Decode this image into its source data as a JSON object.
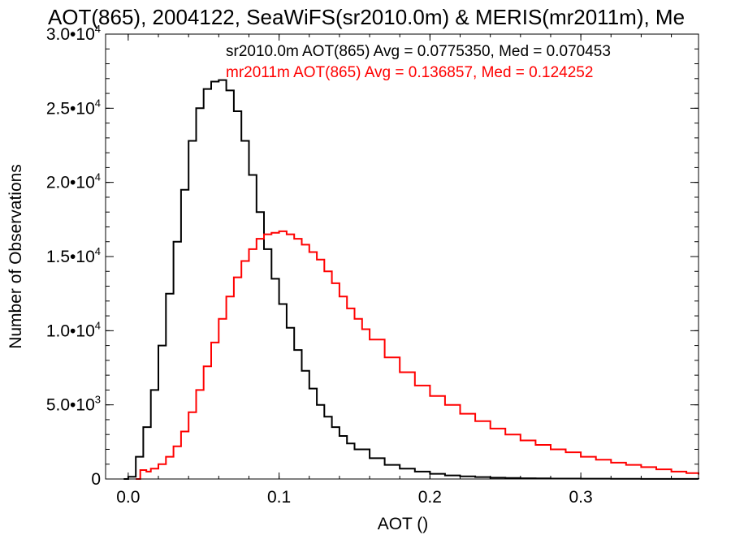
{
  "chart_data": {
    "type": "line",
    "title": "AOT(865), 2004122, SeaWiFS(sr2010.0m) & MERIS(mr2011m), Me",
    "xlabel": "AOT ()",
    "ylabel": "Number of Observations",
    "xlim": [
      -0.015,
      0.378
    ],
    "ylim": [
      0,
      30000
    ],
    "xticks": [
      {
        "value": 0.0,
        "label": "0.0"
      },
      {
        "value": 0.1,
        "label": "0.1"
      },
      {
        "value": 0.2,
        "label": "0.2"
      },
      {
        "value": 0.3,
        "label": "0.3"
      }
    ],
    "yticks": [
      {
        "value": 0,
        "label": "0",
        "exp": ""
      },
      {
        "value": 5000,
        "label": "5.0•10",
        "exp": "3"
      },
      {
        "value": 10000,
        "label": "1.0•10",
        "exp": "4"
      },
      {
        "value": 15000,
        "label": "1.5•10",
        "exp": "4"
      },
      {
        "value": 20000,
        "label": "2.0•10",
        "exp": "4"
      },
      {
        "value": 25000,
        "label": "2.5•10",
        "exp": "4"
      },
      {
        "value": 30000,
        "label": "3.0•10",
        "exp": "4"
      }
    ],
    "grid": false,
    "legend_position": "top-right",
    "series": [
      {
        "name": "sr2010.0m AOT(865) Avg = 0.0775350, Med = 0.070453",
        "color": "#000000",
        "step": true,
        "x": [
          -0.003,
          0.0,
          0.005,
          0.01,
          0.015,
          0.02,
          0.025,
          0.03,
          0.035,
          0.04,
          0.045,
          0.05,
          0.055,
          0.06,
          0.065,
          0.07,
          0.075,
          0.08,
          0.085,
          0.09,
          0.095,
          0.1,
          0.105,
          0.11,
          0.115,
          0.12,
          0.125,
          0.13,
          0.135,
          0.14,
          0.145,
          0.15,
          0.16,
          0.17,
          0.18,
          0.19,
          0.2,
          0.21,
          0.22,
          0.23,
          0.24,
          0.25,
          0.26,
          0.27,
          0.28,
          0.3,
          0.32,
          0.34,
          0.36,
          0.378
        ],
        "y": [
          0,
          150,
          1500,
          3500,
          6000,
          9000,
          12500,
          16000,
          19500,
          22800,
          25000,
          26300,
          26800,
          26900,
          26200,
          24800,
          22800,
          20500,
          18000,
          15500,
          13500,
          11800,
          10200,
          8700,
          7300,
          6100,
          5000,
          4200,
          3500,
          2900,
          2400,
          2000,
          1400,
          950,
          700,
          500,
          350,
          240,
          180,
          130,
          90,
          70,
          50,
          40,
          30,
          20,
          10,
          5,
          3,
          0
        ]
      },
      {
        "name": "mr2011m AOT(865) Avg = 0.136857, Med = 0.124252",
        "color": "#ff0000",
        "step": true,
        "x": [
          0.005,
          0.008,
          0.012,
          0.015,
          0.02,
          0.025,
          0.03,
          0.035,
          0.04,
          0.045,
          0.05,
          0.055,
          0.06,
          0.065,
          0.07,
          0.075,
          0.08,
          0.085,
          0.09,
          0.095,
          0.1,
          0.105,
          0.11,
          0.115,
          0.12,
          0.125,
          0.13,
          0.135,
          0.14,
          0.145,
          0.15,
          0.155,
          0.16,
          0.17,
          0.18,
          0.19,
          0.2,
          0.21,
          0.22,
          0.23,
          0.24,
          0.25,
          0.26,
          0.27,
          0.28,
          0.29,
          0.3,
          0.31,
          0.32,
          0.33,
          0.34,
          0.35,
          0.36,
          0.37,
          0.378
        ],
        "y": [
          0,
          600,
          500,
          700,
          1000,
          1500,
          2200,
          3200,
          4500,
          6000,
          7600,
          9200,
          10800,
          12300,
          13600,
          14700,
          15500,
          16200,
          16500,
          16600,
          16700,
          16500,
          16200,
          15800,
          15300,
          14800,
          14000,
          13200,
          12300,
          11500,
          10800,
          10100,
          9400,
          8200,
          7200,
          6300,
          5600,
          5000,
          4400,
          3900,
          3400,
          3000,
          2600,
          2300,
          2000,
          1800,
          1500,
          1300,
          1100,
          950,
          800,
          650,
          500,
          400,
          300
        ]
      }
    ]
  }
}
